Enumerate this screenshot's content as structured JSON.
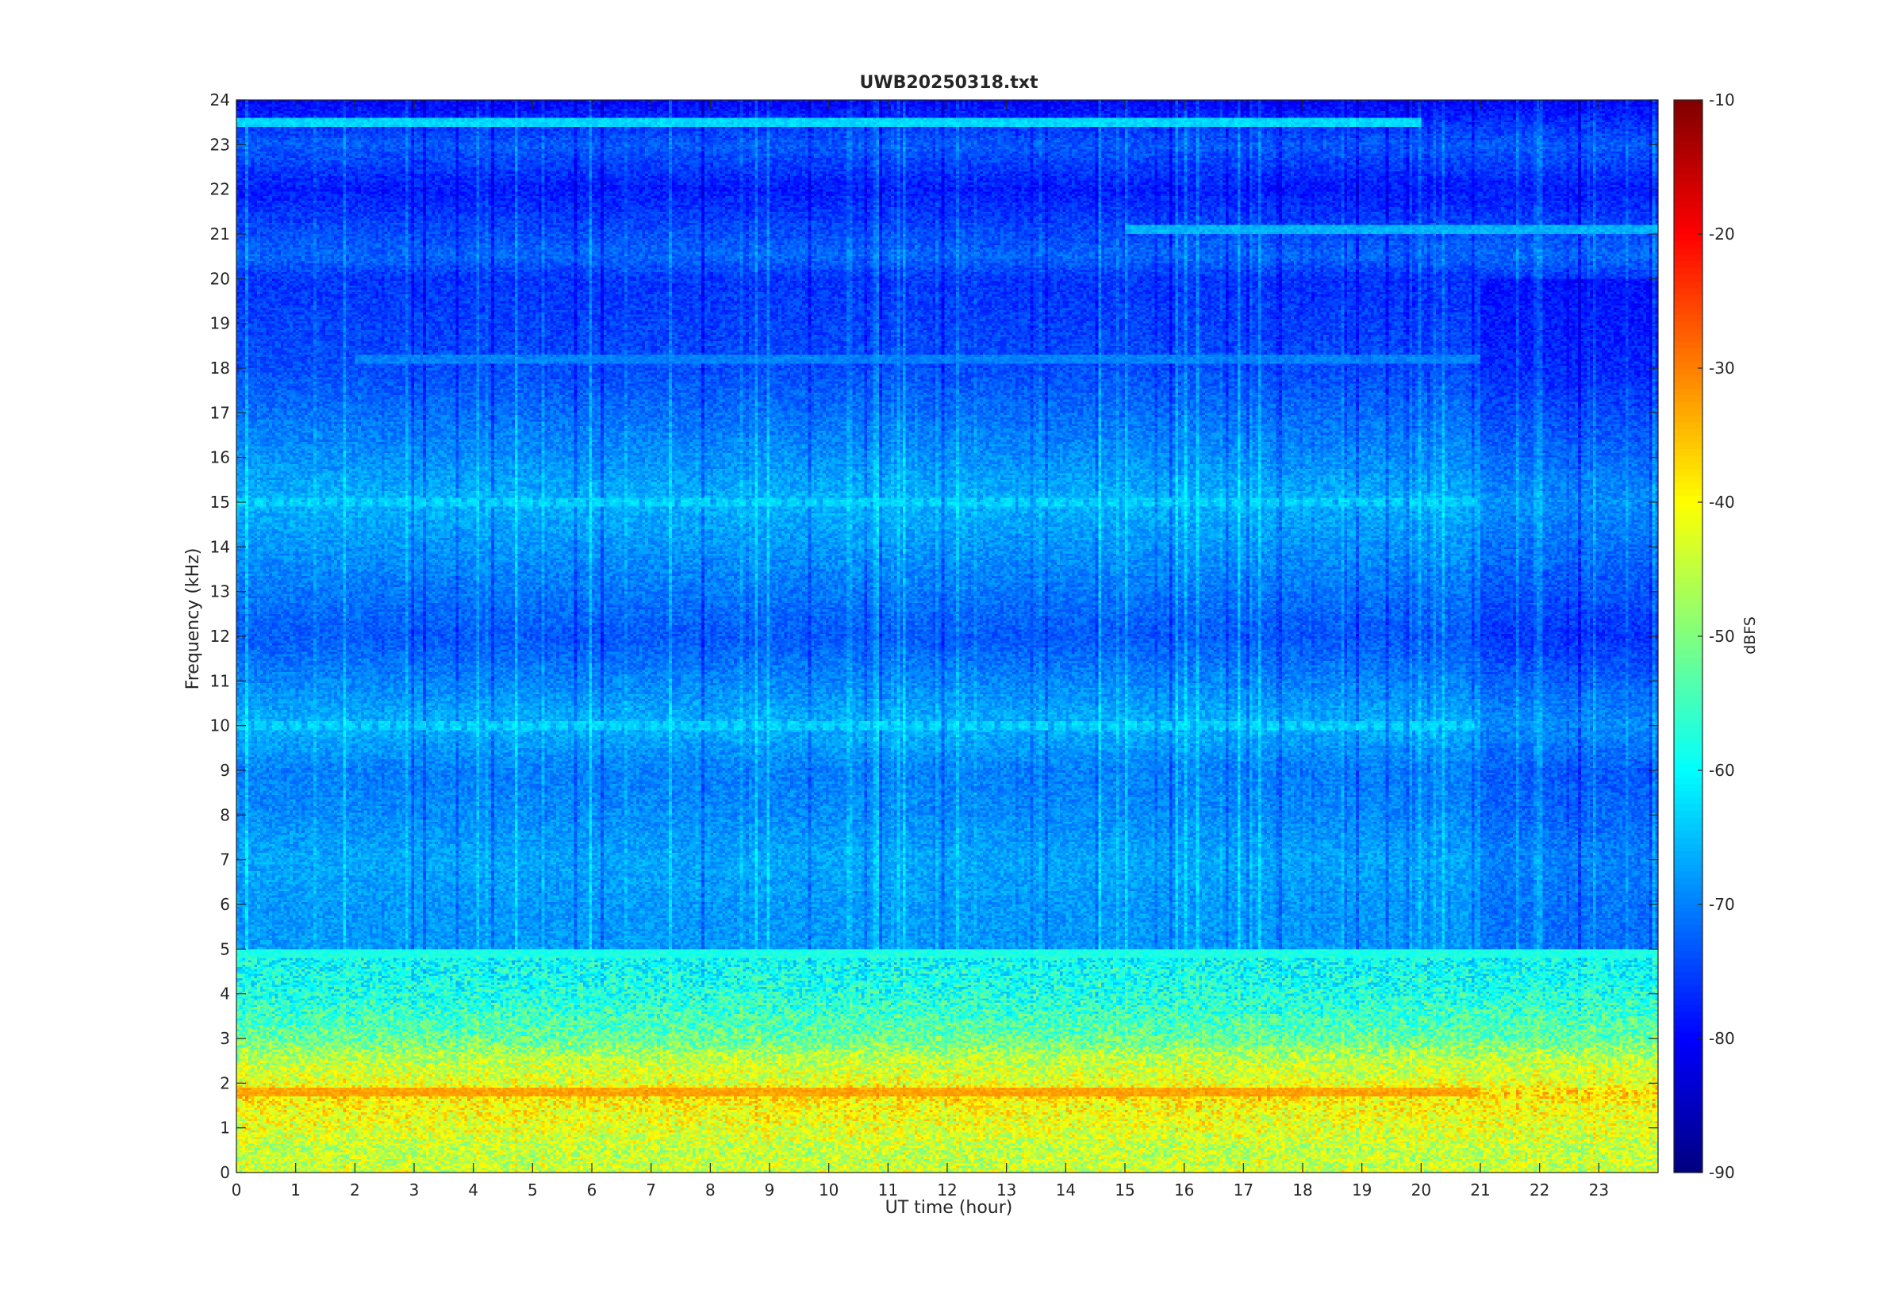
{
  "chart_data": {
    "type": "heatmap",
    "title": "UWB20250318.txt",
    "xlabel": "UT time (hour)",
    "ylabel": "Frequency (kHz)",
    "colorbar_label": "dBFS",
    "xlim": [
      0,
      24
    ],
    "ylim": [
      0,
      24
    ],
    "clim": [
      -90,
      -10
    ],
    "colormap": "jet",
    "x_ticks": [
      0,
      1,
      2,
      3,
      4,
      5,
      6,
      7,
      8,
      9,
      10,
      11,
      12,
      13,
      14,
      15,
      16,
      17,
      18,
      19,
      20,
      21,
      22,
      23
    ],
    "y_ticks": [
      0,
      1,
      2,
      3,
      4,
      5,
      6,
      7,
      8,
      9,
      10,
      11,
      12,
      13,
      14,
      15,
      16,
      17,
      18,
      19,
      20,
      21,
      22,
      23,
      24
    ],
    "colorbar_ticks": [
      -10,
      -20,
      -30,
      -40,
      -50,
      -60,
      -70,
      -80,
      -90
    ],
    "intensity_profile": {
      "frequency_khz": [
        0,
        0.5,
        1,
        1.5,
        1.8,
        2,
        2.5,
        3,
        4,
        4.8,
        5,
        6,
        7,
        8,
        9,
        10,
        12,
        15,
        18,
        20,
        20.5,
        21,
        22,
        23,
        24
      ],
      "typical_level_dbfs": [
        -44,
        -45,
        -42,
        -40,
        -37,
        -42,
        -45,
        -52,
        -58,
        -60,
        -68,
        -68,
        -67,
        -69,
        -70,
        -66,
        -73,
        -66,
        -74,
        -76,
        -72,
        -74,
        -78,
        -73,
        -80
      ]
    },
    "notable_features": [
      {
        "frequency_khz": 1.8,
        "level_dbfs": -33,
        "hours": [
          0,
          21
        ]
      },
      {
        "frequency_khz": 15.0,
        "level_dbfs": -63,
        "hours": [
          0,
          21
        ]
      },
      {
        "frequency_khz": 10.0,
        "level_dbfs": -63,
        "hours": [
          0,
          21
        ]
      },
      {
        "frequency_khz": 4.9,
        "level_dbfs": -58,
        "hours": [
          0,
          24
        ]
      },
      {
        "frequency_khz": 18.2,
        "level_dbfs": -70,
        "hours": [
          2,
          21
        ]
      },
      {
        "frequency_khz": 21.1,
        "level_dbfs": -66,
        "hours": [
          15,
          24
        ]
      },
      {
        "frequency_khz": 23.5,
        "level_dbfs": -63,
        "hours": [
          0,
          20
        ]
      }
    ]
  }
}
